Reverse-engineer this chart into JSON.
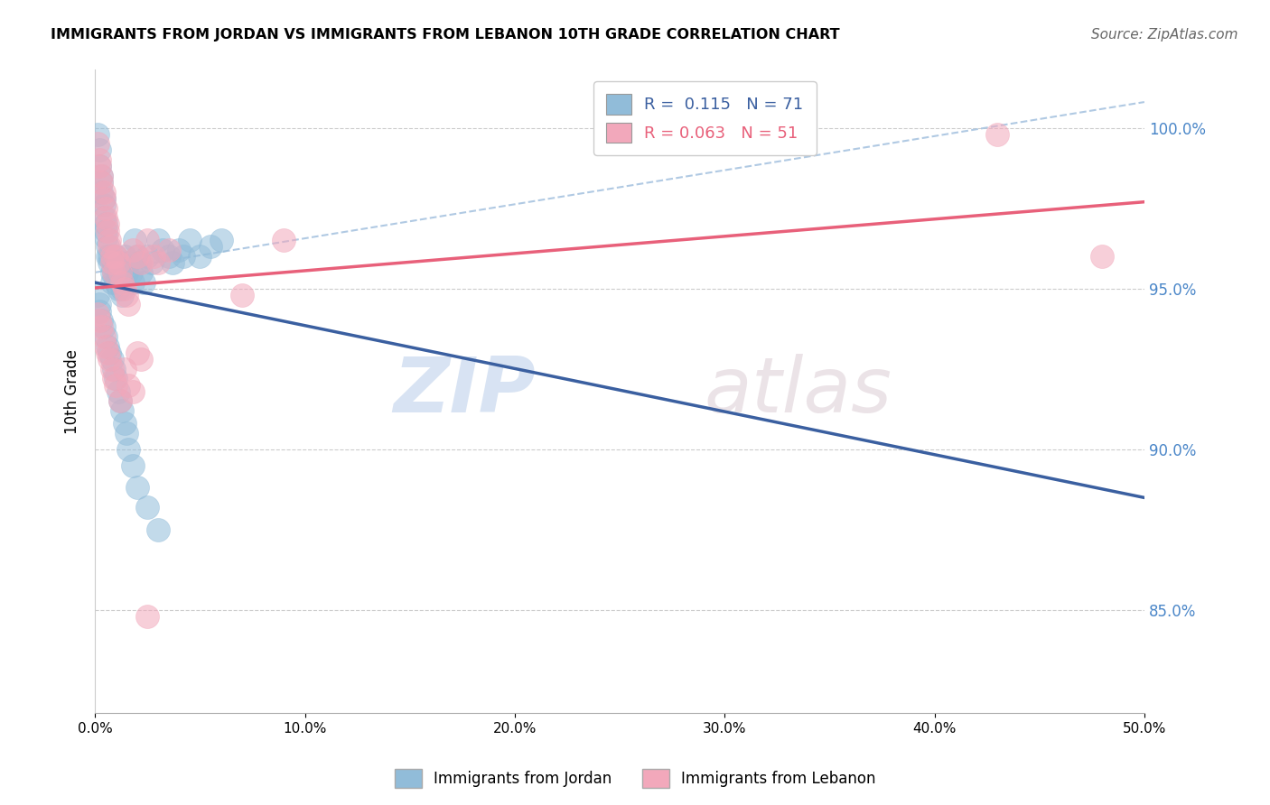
{
  "title": "IMMIGRANTS FROM JORDAN VS IMMIGRANTS FROM LEBANON 10TH GRADE CORRELATION CHART",
  "source": "Source: ZipAtlas.com",
  "ylabel": "10th Grade",
  "xlim": [
    0.0,
    0.5
  ],
  "ylim": [
    0.818,
    1.018
  ],
  "xticks": [
    0.0,
    0.1,
    0.2,
    0.3,
    0.4,
    0.5
  ],
  "xtick_labels": [
    "0.0%",
    "10.0%",
    "20.0%",
    "30.0%",
    "40.0%",
    "50.0%"
  ],
  "ytick_labels": [
    "85.0%",
    "90.0%",
    "95.0%",
    "100.0%"
  ],
  "yticks": [
    0.85,
    0.9,
    0.95,
    1.0
  ],
  "blue_color": "#91bcd9",
  "pink_color": "#f2a8bb",
  "blue_line_color": "#3a5fa0",
  "pink_line_color": "#e8607a",
  "dashed_line_color": "#a8c4e0",
  "watermark_zip": "ZIP",
  "watermark_atlas": "atlas",
  "jordan_x": [
    0.001,
    0.002,
    0.002,
    0.003,
    0.003,
    0.003,
    0.004,
    0.004,
    0.004,
    0.005,
    0.005,
    0.005,
    0.006,
    0.006,
    0.007,
    0.007,
    0.008,
    0.008,
    0.009,
    0.009,
    0.01,
    0.01,
    0.011,
    0.011,
    0.012,
    0.012,
    0.013,
    0.013,
    0.014,
    0.015,
    0.016,
    0.017,
    0.018,
    0.019,
    0.02,
    0.021,
    0.022,
    0.023,
    0.025,
    0.027,
    0.03,
    0.032,
    0.035,
    0.037,
    0.04,
    0.042,
    0.045,
    0.05,
    0.055,
    0.06,
    0.001,
    0.002,
    0.002,
    0.003,
    0.004,
    0.005,
    0.006,
    0.007,
    0.008,
    0.009,
    0.01,
    0.011,
    0.012,
    0.013,
    0.014,
    0.015,
    0.016,
    0.018,
    0.02,
    0.025,
    0.03
  ],
  "jordan_y": [
    0.998,
    0.993,
    0.988,
    0.985,
    0.983,
    0.98,
    0.978,
    0.976,
    0.972,
    0.97,
    0.968,
    0.966,
    0.963,
    0.96,
    0.96,
    0.958,
    0.955,
    0.952,
    0.958,
    0.955,
    0.952,
    0.96,
    0.955,
    0.95,
    0.958,
    0.953,
    0.95,
    0.948,
    0.96,
    0.955,
    0.958,
    0.955,
    0.952,
    0.965,
    0.96,
    0.958,
    0.955,
    0.952,
    0.96,
    0.958,
    0.965,
    0.962,
    0.96,
    0.958,
    0.962,
    0.96,
    0.965,
    0.96,
    0.963,
    0.965,
    0.948,
    0.945,
    0.943,
    0.94,
    0.938,
    0.935,
    0.932,
    0.93,
    0.928,
    0.925,
    0.922,
    0.918,
    0.915,
    0.912,
    0.908,
    0.905,
    0.9,
    0.895,
    0.888,
    0.882,
    0.875
  ],
  "lebanon_x": [
    0.001,
    0.002,
    0.002,
    0.003,
    0.003,
    0.004,
    0.004,
    0.005,
    0.005,
    0.006,
    0.006,
    0.007,
    0.007,
    0.008,
    0.008,
    0.009,
    0.01,
    0.011,
    0.012,
    0.013,
    0.014,
    0.015,
    0.016,
    0.018,
    0.02,
    0.022,
    0.025,
    0.028,
    0.03,
    0.035,
    0.001,
    0.002,
    0.003,
    0.004,
    0.005,
    0.006,
    0.007,
    0.008,
    0.009,
    0.01,
    0.012,
    0.014,
    0.016,
    0.018,
    0.02,
    0.022,
    0.025,
    0.07,
    0.09,
    0.43,
    0.48
  ],
  "lebanon_y": [
    0.995,
    0.99,
    0.988,
    0.985,
    0.983,
    0.98,
    0.978,
    0.975,
    0.972,
    0.97,
    0.968,
    0.965,
    0.963,
    0.96,
    0.958,
    0.955,
    0.96,
    0.958,
    0.955,
    0.952,
    0.95,
    0.948,
    0.945,
    0.962,
    0.96,
    0.958,
    0.965,
    0.96,
    0.958,
    0.962,
    0.942,
    0.94,
    0.938,
    0.935,
    0.932,
    0.93,
    0.928,
    0.925,
    0.922,
    0.92,
    0.915,
    0.925,
    0.92,
    0.918,
    0.93,
    0.928,
    0.848,
    0.948,
    0.965,
    0.998,
    0.96
  ],
  "r_jordan": "R =  0.115",
  "n_jordan": "N = 71",
  "r_lebanon": "R = 0.063",
  "n_lebanon": "N = 51"
}
